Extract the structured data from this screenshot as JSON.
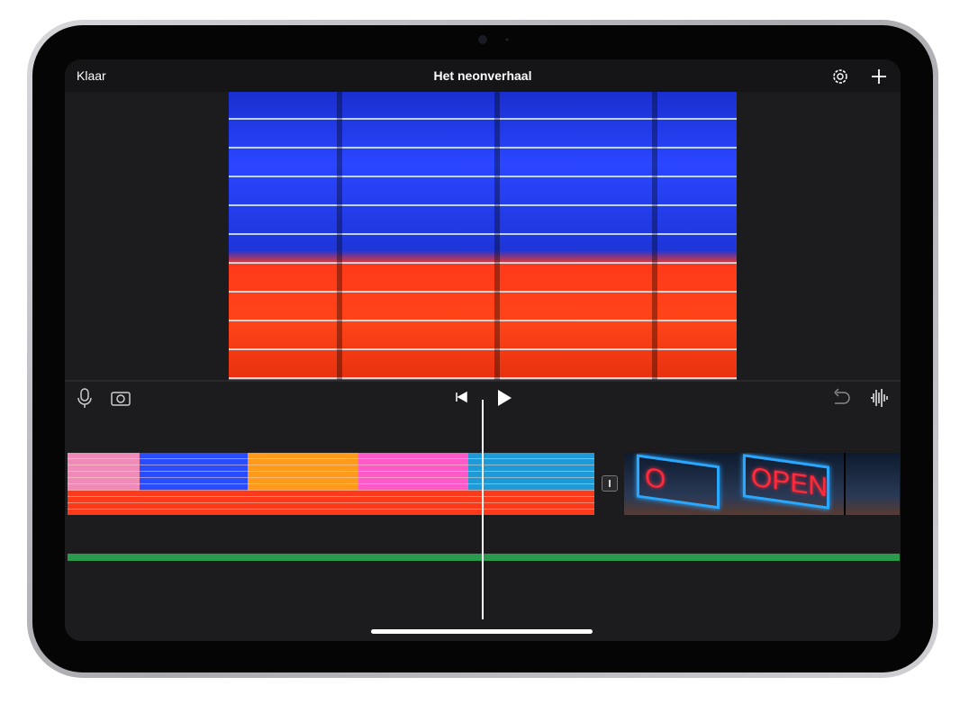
{
  "header": {
    "done": "Klaar",
    "title": "Het neonverhaal"
  },
  "timeline": {
    "clip_sign": "OPEN"
  }
}
